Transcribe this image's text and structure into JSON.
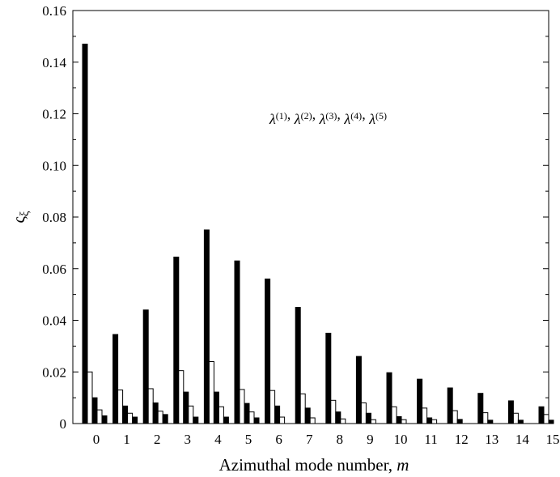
{
  "chart_data": {
    "type": "bar",
    "xlabel": "Azimuthal mode number, ",
    "xlabel_var": "m",
    "ylabel": "ς",
    "ylabel_sub": "ξ",
    "ylim": [
      0,
      0.16
    ],
    "yticks": [
      0,
      0.02,
      0.04,
      0.06,
      0.08,
      0.1,
      0.12,
      0.14,
      0.16
    ],
    "ytick_labels": [
      "0",
      "0.02",
      "0.04",
      "0.06",
      "0.08",
      "0.10",
      "0.12",
      "0.14",
      "0.16"
    ],
    "categories": [
      "0",
      "1",
      "2",
      "3",
      "4",
      "5",
      "6",
      "7",
      "8",
      "9",
      "10",
      "11",
      "12",
      "13",
      "14",
      "15"
    ],
    "legend_text": [
      {
        "sym": "λ",
        "sup": "(1)"
      },
      {
        "sym": "λ",
        "sup": "(2)"
      },
      {
        "sym": "λ",
        "sup": "(3)"
      },
      {
        "sym": "λ",
        "sup": "(4)"
      },
      {
        "sym": "λ",
        "sup": "(5)"
      }
    ],
    "series": [
      {
        "name": "λ(1)",
        "fill": "#000000",
        "values": [
          0.147,
          0.0345,
          0.044,
          0.0645,
          0.075,
          0.063,
          0.056,
          0.045,
          0.035,
          0.026,
          0.0197,
          0.0172,
          0.0138,
          0.0117,
          0.0088,
          0.0065
        ]
      },
      {
        "name": "λ(2)",
        "fill": "#ffffff",
        "values": [
          0.02,
          0.013,
          0.0135,
          0.0205,
          0.024,
          0.0132,
          0.0128,
          0.0115,
          0.009,
          0.008,
          0.0065,
          0.006,
          0.005,
          0.0042,
          0.004,
          0.0035
        ]
      },
      {
        "name": "λ(3)",
        "fill": "#000000",
        "values": [
          0.01,
          0.0068,
          0.008,
          0.0122,
          0.0122,
          0.0078,
          0.0068,
          0.006,
          0.0045,
          0.004,
          0.0027,
          0.0022,
          0.0016,
          0.0013,
          0.0013,
          0.0013
        ]
      },
      {
        "name": "λ(4)",
        "fill": "#ffffff",
        "values": [
          0.0053,
          0.004,
          0.0048,
          0.0068,
          0.0065,
          0.0045,
          0.0025,
          0.0022,
          0.0018,
          0.0015,
          0.0015,
          0.0015,
          0.0,
          0.0,
          0.0,
          0.0
        ]
      },
      {
        "name": "λ(5)",
        "fill": "#000000",
        "values": [
          0.003,
          0.0025,
          0.0035,
          0.0025,
          0.0025,
          0.0022,
          0.0,
          0.0,
          0.0,
          0.0,
          0.0,
          0.0,
          0.0,
          0.0,
          0.0,
          0.0
        ]
      }
    ],
    "grid": false
  }
}
